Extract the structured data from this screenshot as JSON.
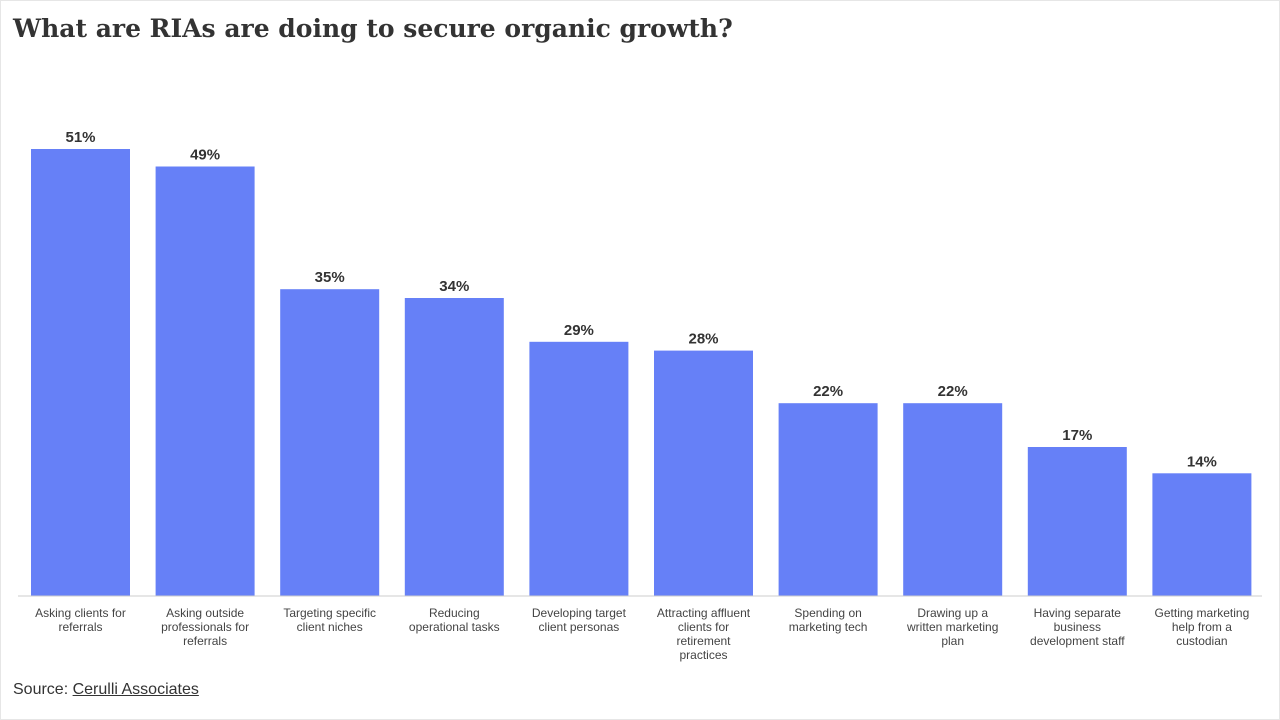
{
  "chart_data": {
    "type": "bar",
    "title": "What are RIAs are doing to secure organic growth?",
    "categories": [
      "Asking clients for referrals",
      "Asking outside professionals for referrals",
      "Targeting specific client niches",
      "Reducing operational tasks",
      "Developing target client personas",
      "Attracting affluent clients for retirement practices",
      "Spending on marketing tech",
      "Drawing up a written marketing plan",
      "Having separate business development staff",
      "Getting marketing help from a custodian"
    ],
    "category_lines": [
      [
        "Asking clients for",
        "referrals"
      ],
      [
        "Asking outside",
        "professionals for",
        "referrals"
      ],
      [
        "Targeting specific",
        "client niches"
      ],
      [
        "Reducing",
        "operational tasks"
      ],
      [
        "Developing target",
        "client personas"
      ],
      [
        "Attracting affluent",
        "clients for",
        "retirement",
        "practices"
      ],
      [
        "Spending on",
        "marketing tech"
      ],
      [
        "Drawing up a",
        "written marketing",
        "plan"
      ],
      [
        "Having separate",
        "business",
        "development staff"
      ],
      [
        "Getting marketing",
        "help from a",
        "custodian"
      ]
    ],
    "values": [
      51,
      49,
      35,
      34,
      29,
      28,
      22,
      22,
      17,
      14
    ],
    "value_labels": [
      "51%",
      "49%",
      "35%",
      "34%",
      "29%",
      "28%",
      "22%",
      "22%",
      "17%",
      "14%"
    ],
    "value_unit": "%",
    "xlabel": "",
    "ylabel": "",
    "ylim": [
      0,
      51
    ],
    "grid": false,
    "legend": "none",
    "colors": {
      "bar": "#6680f7",
      "axis": "#cccccc",
      "text": "#333333"
    }
  },
  "source": {
    "prefix": "Source: ",
    "name": "Cerulli Associates"
  }
}
